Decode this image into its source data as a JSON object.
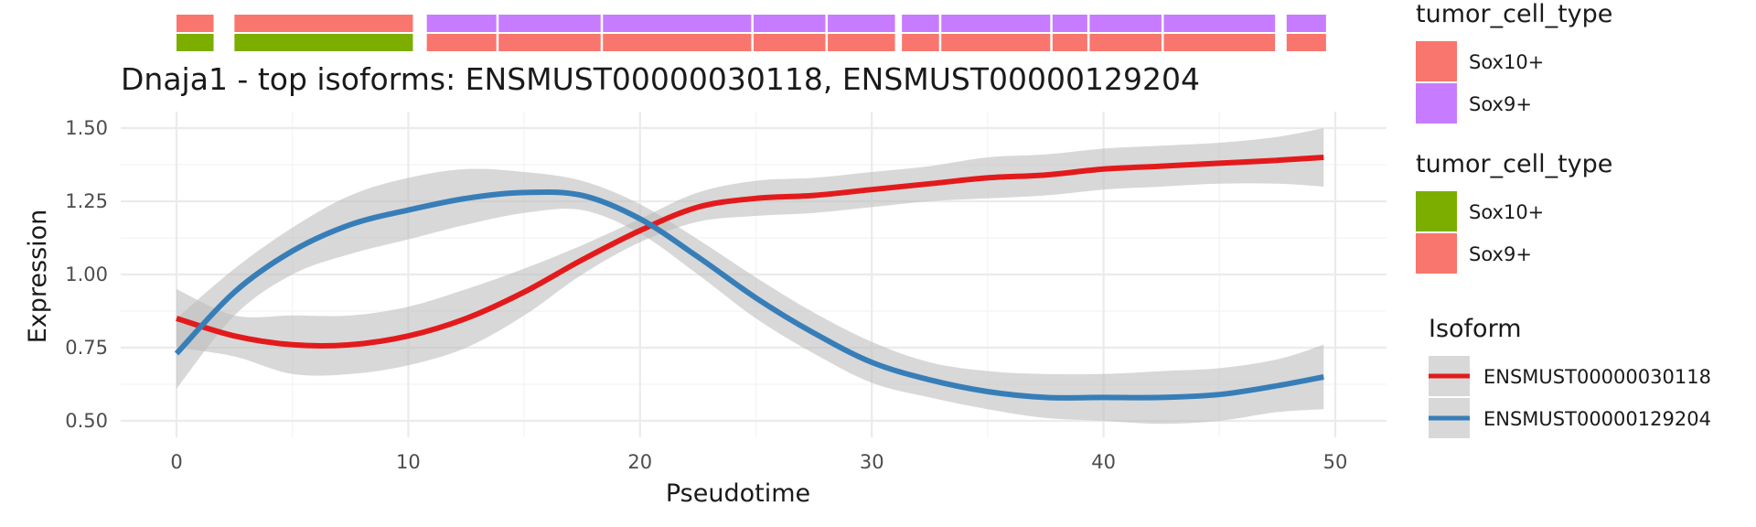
{
  "chart_data": {
    "type": "line",
    "title": "Dnaja1 - top isoforms: ENSMUST00000030118, ENSMUST00000129204",
    "xlabel": "Pseudotime",
    "ylabel": "Expression",
    "xlim": [
      -2.5,
      52
    ],
    "ylim": [
      0.44,
      1.56
    ],
    "x_ticks": [
      0,
      10,
      20,
      30,
      40,
      50
    ],
    "y_ticks": [
      0.5,
      0.75,
      1.0,
      1.25,
      1.5
    ],
    "x_tick_labels": [
      "0",
      "10",
      "20",
      "30",
      "40",
      "50"
    ],
    "y_tick_labels": [
      "0.50",
      "0.75",
      "1.00",
      "1.25",
      "1.50"
    ],
    "grid": true,
    "legend_position": "right",
    "series": [
      {
        "name": "ENSMUST00000030118",
        "color": "#e31a1c",
        "x": [
          0,
          2.5,
          5,
          7.5,
          10,
          12.5,
          15,
          17.5,
          20,
          22.5,
          25,
          27.5,
          30,
          32.5,
          35,
          37.5,
          40,
          42.5,
          45,
          47.5,
          49.5
        ],
        "values": [
          0.85,
          0.79,
          0.76,
          0.76,
          0.79,
          0.85,
          0.94,
          1.05,
          1.15,
          1.23,
          1.26,
          1.27,
          1.29,
          1.31,
          1.33,
          1.34,
          1.36,
          1.37,
          1.38,
          1.39,
          1.4
        ],
        "ci_upper": [
          0.95,
          0.86,
          0.86,
          0.86,
          0.89,
          0.95,
          1.02,
          1.1,
          1.19,
          1.28,
          1.32,
          1.33,
          1.35,
          1.37,
          1.4,
          1.41,
          1.43,
          1.44,
          1.45,
          1.47,
          1.5
        ],
        "ci_lower": [
          0.75,
          0.72,
          0.66,
          0.66,
          0.69,
          0.75,
          0.86,
          1.0,
          1.11,
          1.18,
          1.2,
          1.21,
          1.23,
          1.25,
          1.26,
          1.27,
          1.29,
          1.3,
          1.31,
          1.31,
          1.3
        ]
      },
      {
        "name": "ENSMUST00000129204",
        "color": "#377eb8",
        "x": [
          0,
          2.5,
          5,
          7.5,
          10,
          12.5,
          15,
          17.5,
          20,
          22.5,
          25,
          27.5,
          30,
          32.5,
          35,
          37.5,
          40,
          42.5,
          45,
          47.5,
          49.5
        ],
        "values": [
          0.73,
          0.94,
          1.08,
          1.17,
          1.22,
          1.26,
          1.28,
          1.27,
          1.19,
          1.06,
          0.92,
          0.8,
          0.7,
          0.64,
          0.6,
          0.58,
          0.58,
          0.58,
          0.59,
          0.62,
          0.65
        ],
        "ci_upper": [
          0.85,
          1.02,
          1.16,
          1.27,
          1.33,
          1.36,
          1.35,
          1.32,
          1.24,
          1.12,
          0.99,
          0.87,
          0.77,
          0.7,
          0.67,
          0.66,
          0.66,
          0.67,
          0.68,
          0.71,
          0.76
        ],
        "ci_lower": [
          0.61,
          0.86,
          1.0,
          1.07,
          1.12,
          1.17,
          1.21,
          1.22,
          1.14,
          1.0,
          0.85,
          0.73,
          0.63,
          0.58,
          0.54,
          0.51,
          0.5,
          0.49,
          0.5,
          0.53,
          0.54
        ]
      }
    ],
    "annotation_bars": [
      {
        "name": "tumor_cell_type",
        "segments": [
          {
            "x0": 0,
            "x1": 1.6,
            "category": "Sox10+",
            "color": "#F8766D"
          },
          {
            "x0": 2.5,
            "x1": 10.2,
            "category": "Sox10+",
            "color": "#F8766D"
          },
          {
            "x0": 10.8,
            "x1": 13.8,
            "category": "Sox9+",
            "color": "#C77CFF"
          },
          {
            "x0": 13.9,
            "x1": 18.3,
            "category": "Sox9+",
            "color": "#C77CFF"
          },
          {
            "x0": 18.4,
            "x1": 24.8,
            "category": "Sox9+",
            "color": "#C77CFF"
          },
          {
            "x0": 24.9,
            "x1": 28.0,
            "category": "Sox9+",
            "color": "#C77CFF"
          },
          {
            "x0": 28.1,
            "x1": 31.0,
            "category": "Sox9+",
            "color": "#C77CFF"
          },
          {
            "x0": 31.3,
            "x1": 32.9,
            "category": "Sox9+",
            "color": "#C77CFF"
          },
          {
            "x0": 33.0,
            "x1": 37.7,
            "category": "Sox9+",
            "color": "#C77CFF"
          },
          {
            "x0": 37.8,
            "x1": 39.3,
            "category": "Sox9+",
            "color": "#C77CFF"
          },
          {
            "x0": 39.4,
            "x1": 42.5,
            "category": "Sox9+",
            "color": "#C77CFF"
          },
          {
            "x0": 42.6,
            "x1": 47.4,
            "category": "Sox9+",
            "color": "#C77CFF"
          },
          {
            "x0": 47.9,
            "x1": 49.6,
            "category": "Sox9+",
            "color": "#C77CFF"
          }
        ]
      },
      {
        "name": "tumor_cell_type",
        "segments": [
          {
            "x0": 0,
            "x1": 1.6,
            "category": "Sox10+",
            "color": "#7CAE00"
          },
          {
            "x0": 2.5,
            "x1": 10.2,
            "category": "Sox10+",
            "color": "#7CAE00"
          },
          {
            "x0": 10.8,
            "x1": 13.8,
            "category": "Sox9+",
            "color": "#F8766D"
          },
          {
            "x0": 13.9,
            "x1": 18.3,
            "category": "Sox9+",
            "color": "#F8766D"
          },
          {
            "x0": 18.4,
            "x1": 24.8,
            "category": "Sox9+",
            "color": "#F8766D"
          },
          {
            "x0": 24.9,
            "x1": 28.0,
            "category": "Sox9+",
            "color": "#F8766D"
          },
          {
            "x0": 28.1,
            "x1": 31.0,
            "category": "Sox9+",
            "color": "#F8766D"
          },
          {
            "x0": 31.3,
            "x1": 32.9,
            "category": "Sox9+",
            "color": "#F8766D"
          },
          {
            "x0": 33.0,
            "x1": 37.7,
            "category": "Sox9+",
            "color": "#F8766D"
          },
          {
            "x0": 37.8,
            "x1": 39.3,
            "category": "Sox9+",
            "color": "#F8766D"
          },
          {
            "x0": 39.4,
            "x1": 42.5,
            "category": "Sox9+",
            "color": "#F8766D"
          },
          {
            "x0": 42.6,
            "x1": 47.4,
            "category": "Sox9+",
            "color": "#F8766D"
          },
          {
            "x0": 47.9,
            "x1": 49.6,
            "category": "Sox9+",
            "color": "#F8766D"
          }
        ]
      }
    ],
    "legends": [
      {
        "title": "tumor_cell_type",
        "items": [
          {
            "label": "Sox10+",
            "color": "#F8766D"
          },
          {
            "label": "Sox9+",
            "color": "#C77CFF"
          }
        ]
      },
      {
        "title": "tumor_cell_type",
        "items": [
          {
            "label": "Sox10+",
            "color": "#7CAE00"
          },
          {
            "label": "Sox9+",
            "color": "#F8766D"
          }
        ]
      },
      {
        "title": "Isoform",
        "items": [
          {
            "label": "ENSMUST00000030118",
            "color": "#e31a1c"
          },
          {
            "label": "ENSMUST00000129204",
            "color": "#377eb8"
          }
        ]
      }
    ],
    "colors": {
      "ribbon": "#BEBEBE",
      "grid_major": "#EBEBEB",
      "grid_minor": "#F5F5F5"
    }
  }
}
